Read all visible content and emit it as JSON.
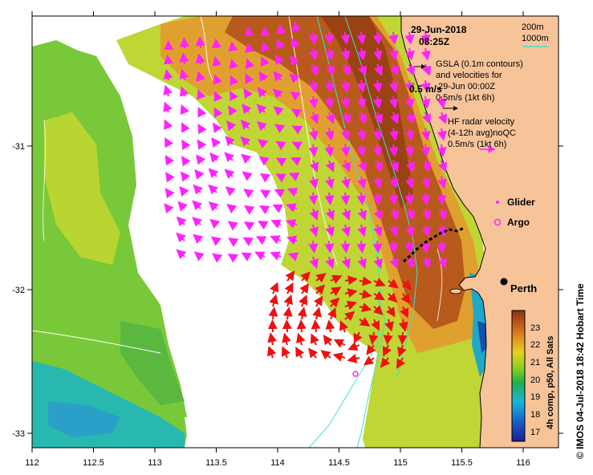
{
  "header": {
    "date": "29-Jun-2018",
    "time": "08:25Z"
  },
  "legend": {
    "contour_200m": "200m",
    "contour_1000m": "1000m",
    "gsla_line1": "GSLA (0.1m contours)",
    "gsla_line2": "and velocities for",
    "gsla_line3": "29-Jun 00:00Z",
    "gsla_scale": "0.5m/s (1kt 6h)",
    "hf_line1": "HF radar velocity",
    "hf_line2": "(4-12h avg)noQC",
    "hf_scale": "0.5m/s (1kt 6h)",
    "speed_marker": "0.5 m/s",
    "glider": "Glider",
    "argo": "Argo",
    "city": "Perth"
  },
  "axes": {
    "x_ticks": [
      "112",
      "112.5",
      "113",
      "113.5",
      "114",
      "114.5",
      "115",
      "115.5",
      "116"
    ],
    "y_ticks": [
      "-31",
      "-32",
      "-33"
    ]
  },
  "colorbar": {
    "ticks": [
      "23",
      "22",
      "21",
      "20",
      "19",
      "18",
      "17"
    ],
    "label": "4h comp, p50, All Sats"
  },
  "credit": "© IMOS 04-Jul-2018 18:42 Hobart Time",
  "colors": {
    "land": "#f7c49a",
    "hf_vectors": "#ff22ff",
    "gsla_vectors": "#ee1111",
    "isobath_200m": "#40e0d0",
    "isobath_1000m": "#40e0d0",
    "glider_track": "#000000",
    "sst_warm": "#b5541a",
    "sst_cool": "#3aa0d0"
  }
}
